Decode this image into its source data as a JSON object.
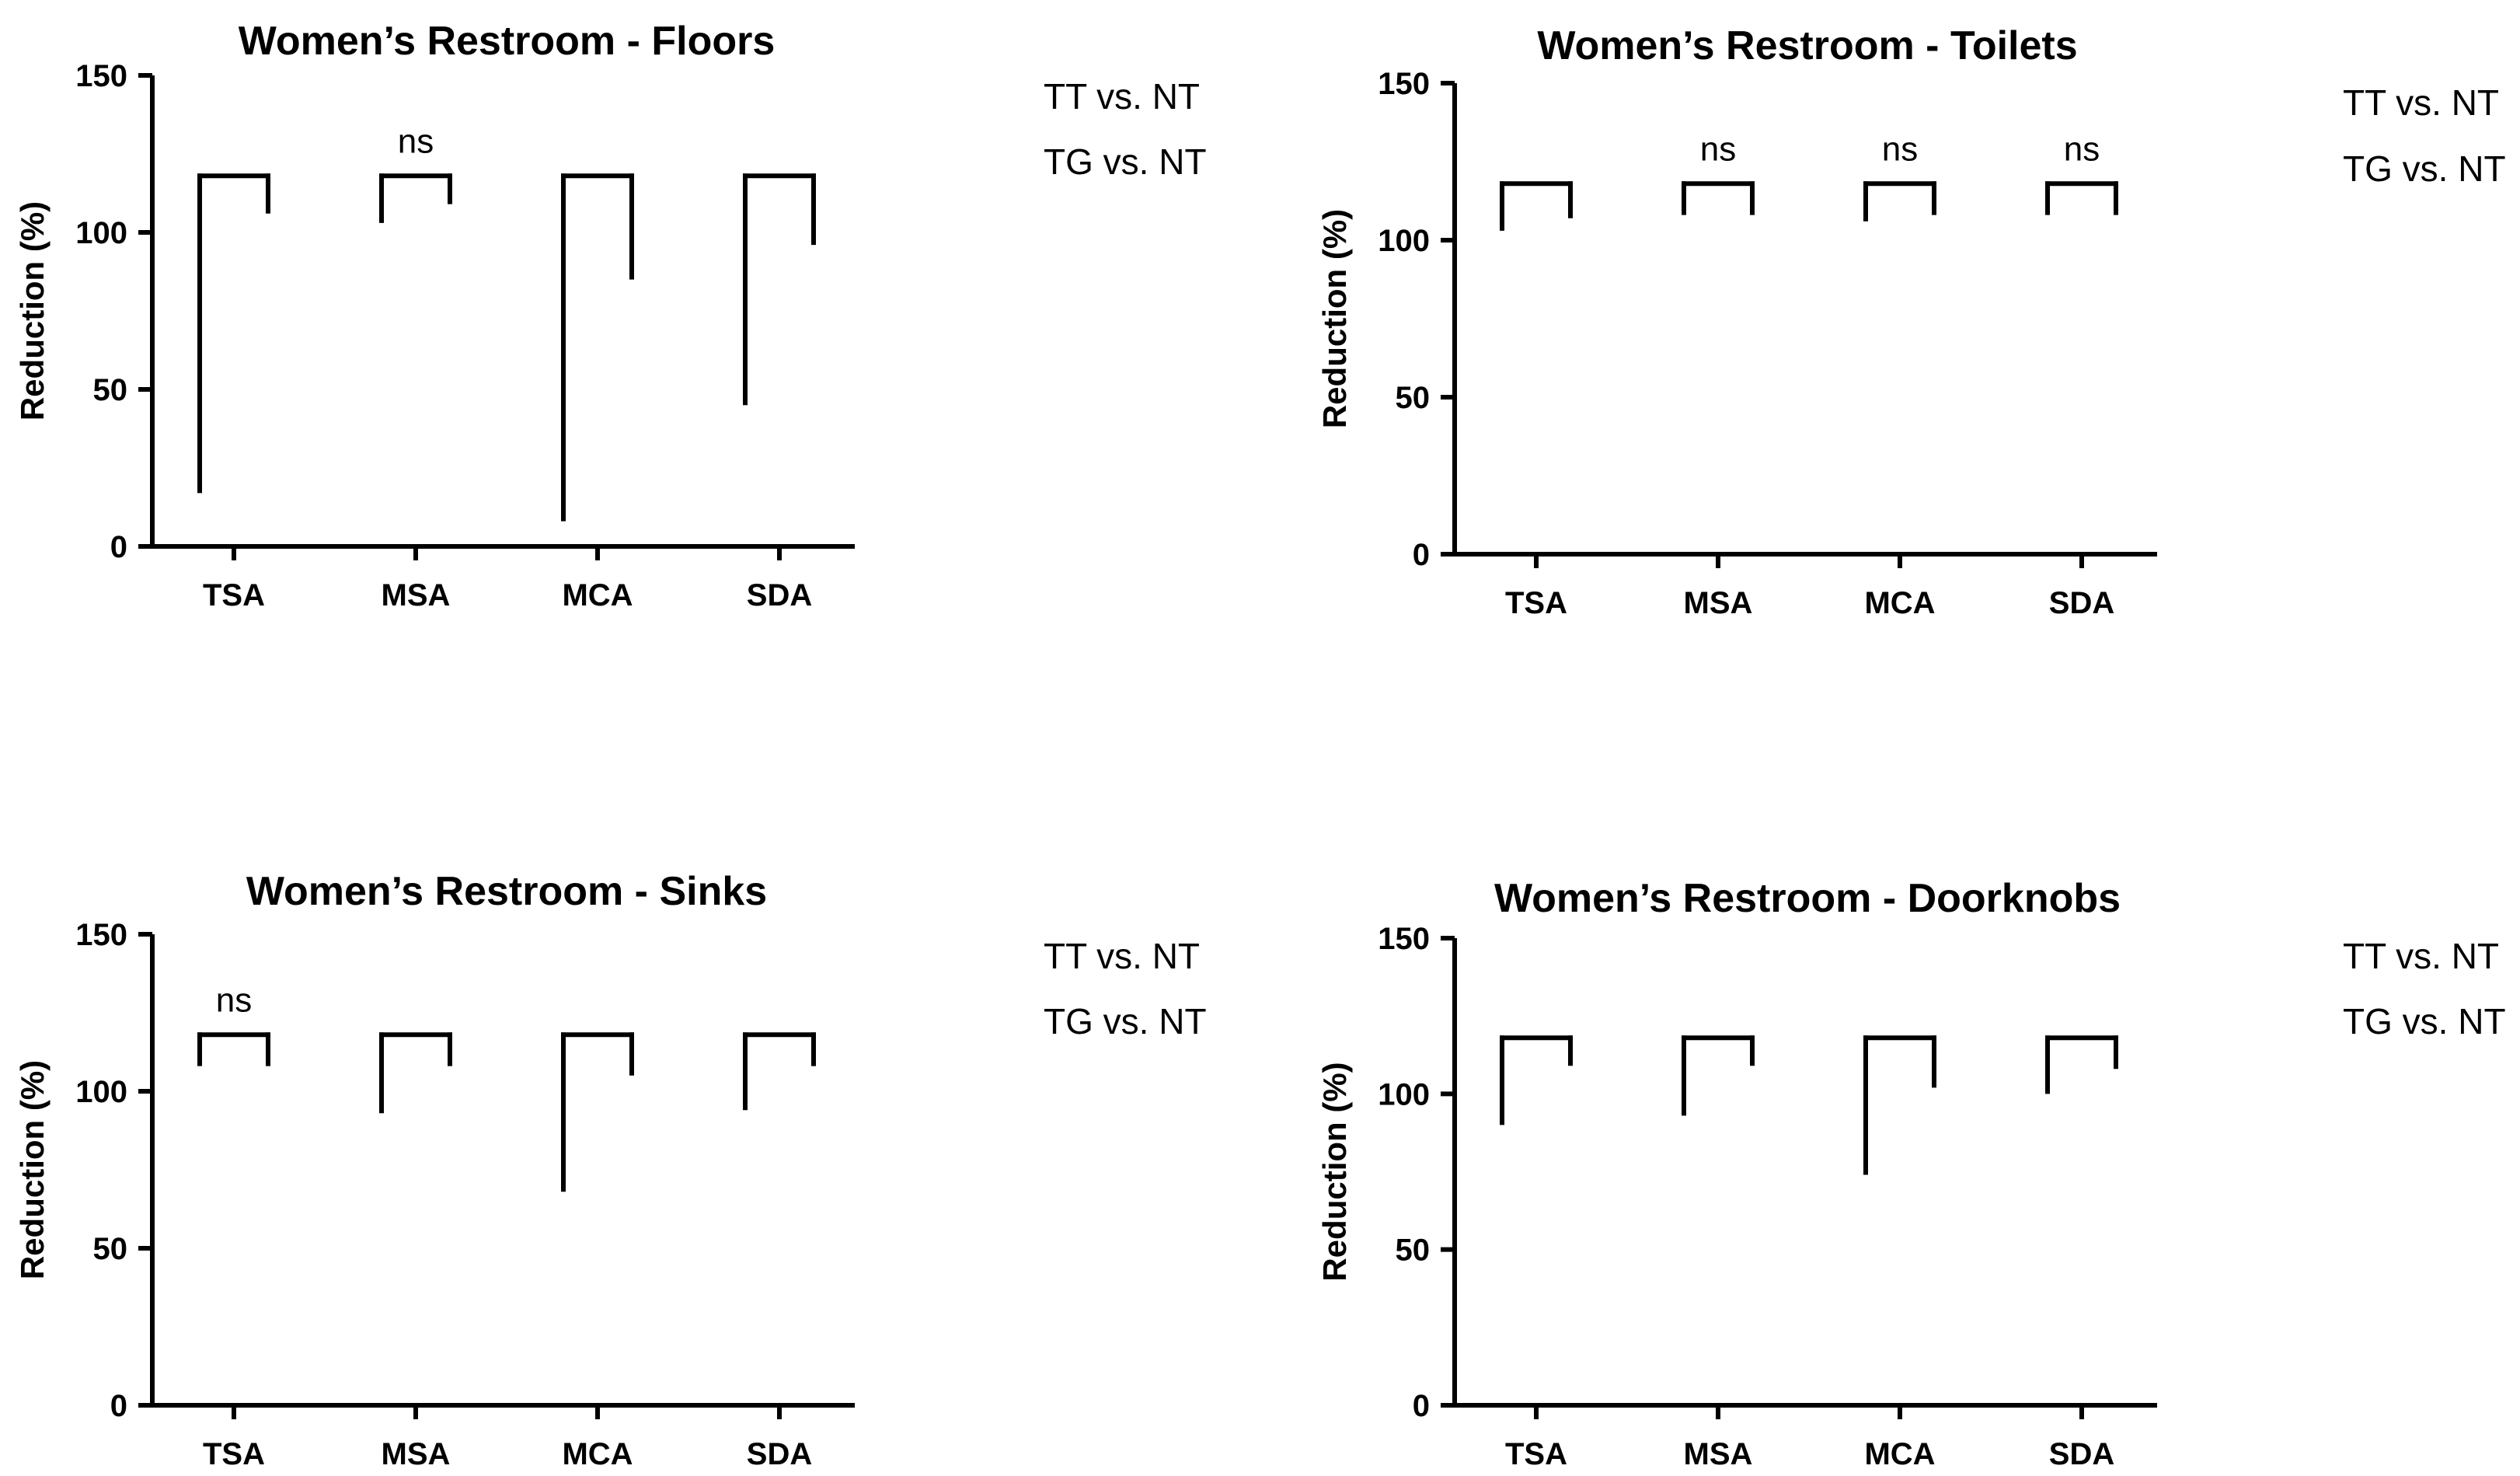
{
  "chart_data": [
    {
      "type": "bar",
      "title": "Women’s Restroom - Floors",
      "ylabel": "Reduction (%)",
      "xlabel": "",
      "ylim": [
        0,
        150
      ],
      "yticks": [
        "0",
        "50",
        "100",
        "150"
      ],
      "categories": [
        "TSA",
        "MSA",
        "MCA",
        "SDA"
      ],
      "series": [
        {
          "name": "TT vs. NT",
          "values": [
            17,
            103,
            8,
            45
          ]
        },
        {
          "name": "TG vs. NT",
          "values": [
            106,
            109,
            85,
            96
          ]
        }
      ],
      "comparison_bracket_level": 118,
      "annotations": [
        "",
        "ns",
        "",
        ""
      ],
      "legend": [
        "TT vs. NT",
        "TG vs. NT"
      ]
    },
    {
      "type": "bar",
      "title": "Women’s Restroom - Toilets",
      "ylabel": "Reduction (%)",
      "xlabel": "",
      "ylim": [
        0,
        150
      ],
      "yticks": [
        "0",
        "50",
        "100",
        "150"
      ],
      "categories": [
        "TSA",
        "MSA",
        "MCA",
        "SDA"
      ],
      "series": [
        {
          "name": "TT vs. NT",
          "values": [
            103,
            108,
            106,
            108
          ]
        },
        {
          "name": "TG vs. NT",
          "values": [
            107,
            108,
            108,
            108
          ]
        }
      ],
      "comparison_bracket_level": 118,
      "annotations": [
        "",
        "ns",
        "ns",
        "ns"
      ],
      "legend": [
        "TT vs. NT",
        "TG vs. NT"
      ]
    },
    {
      "type": "bar",
      "title": "Women’s Restroom - Sinks",
      "ylabel": "Reduction (%)",
      "xlabel": "",
      "ylim": [
        0,
        150
      ],
      "yticks": [
        "0",
        "50",
        "100",
        "150"
      ],
      "categories": [
        "TSA",
        "MSA",
        "MCA",
        "SDA"
      ],
      "series": [
        {
          "name": "TT vs. NT",
          "values": [
            108,
            93,
            68,
            94
          ]
        },
        {
          "name": "TG vs. NT",
          "values": [
            108,
            108,
            105,
            108
          ]
        }
      ],
      "comparison_bracket_level": 118,
      "annotations": [
        "ns",
        "",
        "",
        ""
      ],
      "legend": [
        "TT vs. NT",
        "TG vs. NT"
      ]
    },
    {
      "type": "bar",
      "title": "Women’s Restroom - Doorknobs",
      "ylabel": "Reduction (%)",
      "xlabel": "",
      "ylim": [
        0,
        150
      ],
      "yticks": [
        "0",
        "50",
        "100",
        "150"
      ],
      "categories": [
        "TSA",
        "MSA",
        "MCA",
        "SDA"
      ],
      "series": [
        {
          "name": "TT vs. NT",
          "values": [
            90,
            93,
            74,
            100
          ]
        },
        {
          "name": "TG vs. NT",
          "values": [
            109,
            109,
            102,
            108
          ]
        }
      ],
      "comparison_bracket_level": 118,
      "annotations": [
        "",
        "",
        "",
        ""
      ],
      "legend": [
        "TT vs. NT",
        "TG vs. NT"
      ]
    }
  ]
}
